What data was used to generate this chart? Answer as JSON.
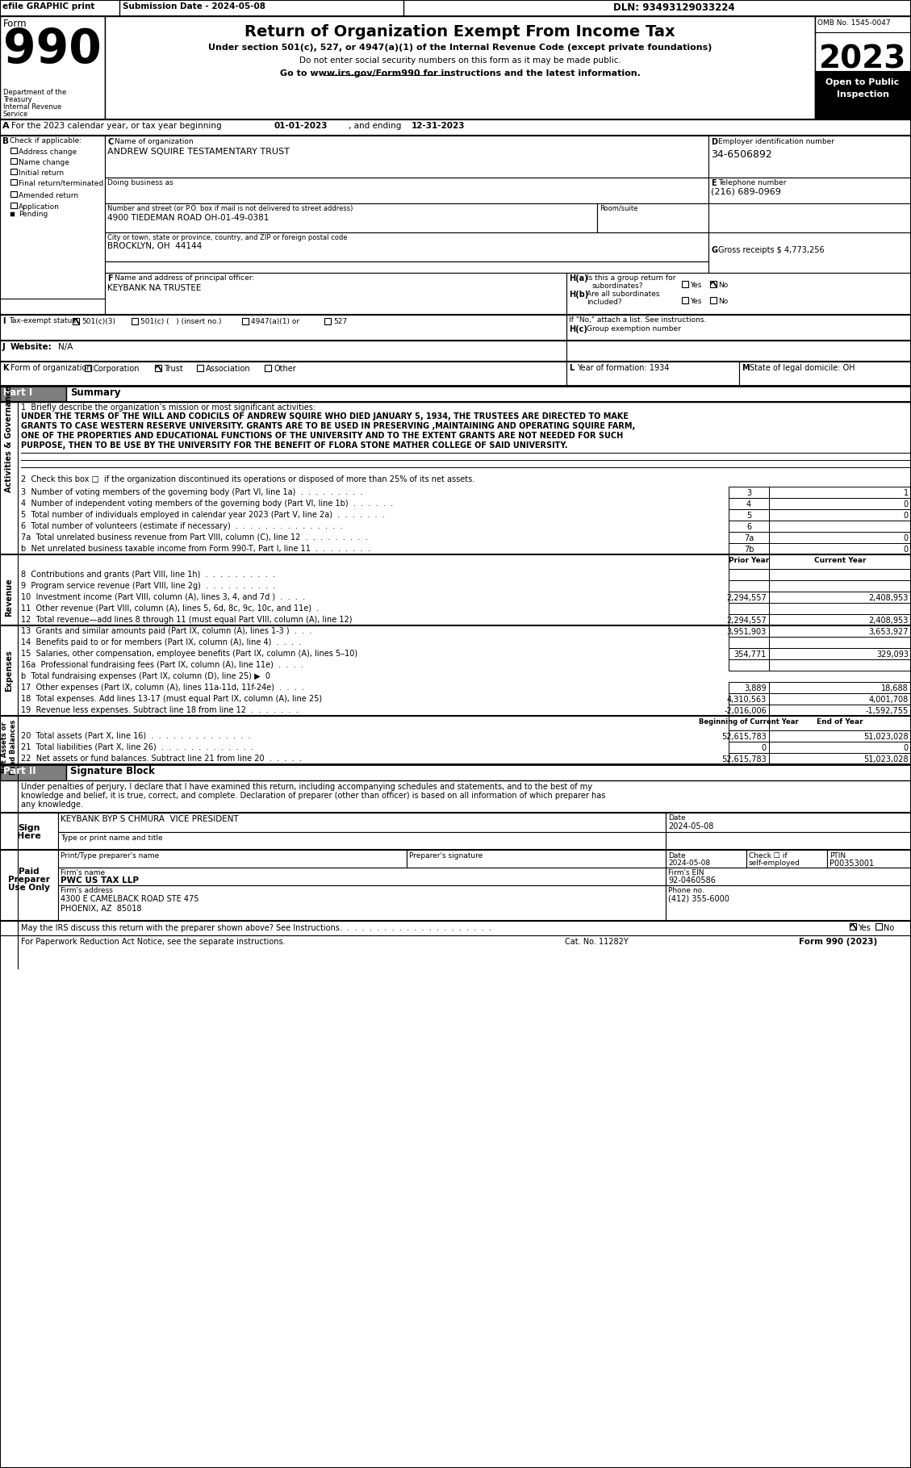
{
  "title": "Return of Organization Exempt From Income Tax",
  "subtitle1": "Under section 501(c), 527, or 4947(a)(1) of the Internal Revenue Code (except private foundations)",
  "subtitle2": "Do not enter social security numbers on this form as it may be made public.",
  "subtitle3": "Go to www.irs.gov/Form990 for instructions and the latest information.",
  "omb": "OMB No. 1545-0047",
  "year": "2023",
  "org_name": "ANDREW SQUIRE TESTAMENTARY TRUST",
  "address": "4900 TIEDEMAN ROAD OH-01-49-0381",
  "city": "BROCKLYN, OH  44144",
  "ein": "34-6506892",
  "phone": "(216) 689-0969",
  "gross_receipts": "4,773,256",
  "principal": "KEYBANK NA TRUSTEE",
  "j_value": "N/A",
  "mission_text": "UNDER THE TERMS OF THE WILL AND CODICILS OF ANDREW SQUIRE WHO DIED JANUARY 5, 1934, THE TRUSTEES ARE DIRECTED TO MAKE\nGRANTS TO CASE WESTERN RESERVE UNIVERSITY. GRANTS ARE TO BE USED IN PRESERVING ,MAINTAINING AND OPERATING SQUIRE FARM,\nONE OF THE PROPERTIES AND EDUCATIONAL FUNCTIONS OF THE UNIVERSITY AND TO THE EXTENT GRANTS ARE NOT NEEDED FOR SUCH\nPURPOSE, THEN TO BE USE BY THE UNIVERSITY FOR THE BENEFIT OF FLORA STONE MATHER COLLEGE OF SAID UNIVERSITY.",
  "line3_val": "1",
  "line4_val": "0",
  "line5_val": "0",
  "line6_val": "",
  "line7a_val": "0",
  "line7b_val": "0",
  "col_prior": "Prior Year",
  "col_current": "Current Year",
  "line8_prior": "",
  "line8_current": "",
  "line9_prior": "",
  "line9_current": "",
  "line10_prior": "2,294,557",
  "line10_current": "2,408,953",
  "line11_prior": "",
  "line11_current": "",
  "line12_prior": "2,294,557",
  "line12_current": "2,408,953",
  "line13_prior": "3,951,903",
  "line13_current": "3,653,927",
  "line14_prior": "",
  "line14_current": "",
  "line15_prior": "354,771",
  "line15_current": "329,093",
  "line16a_prior": "",
  "line16a_current": "",
  "line17_prior": "3,889",
  "line17_current": "18,688",
  "line18_prior": "4,310,563",
  "line18_current": "4,001,708",
  "line19_prior": "-2,016,006",
  "line19_current": "-1,592,755",
  "col_begin": "Beginning of Current Year",
  "col_end": "End of Year",
  "line20_begin": "52,615,783",
  "line20_end": "51,023,028",
  "line21_begin": "0",
  "line21_end": "0",
  "line22_begin": "52,615,783",
  "line22_end": "51,023,028",
  "sig_name": "KEYBANK BYP S CHMURA  VICE PRESIDENT",
  "sig_date": "2024-05-08",
  "ptin": "P00353001",
  "firms_name": "PWC US TAX LLP",
  "firms_ein": "92-0460586",
  "firms_address": "4300 E CAMELBACK ROAD STE 475",
  "firms_city": "PHOENIX, AZ  85018",
  "prep_phone": "(412) 355-6000",
  "prep_date": "2024-05-08",
  "bg_color": "#ffffff"
}
